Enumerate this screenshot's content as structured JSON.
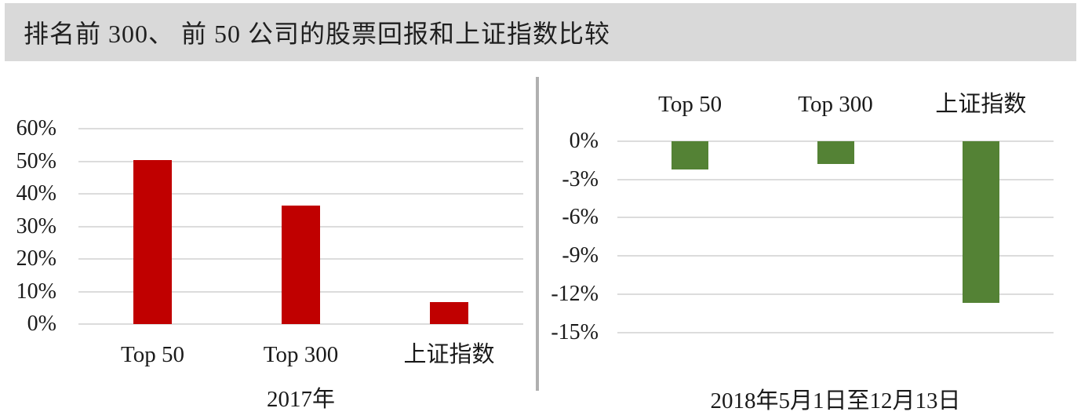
{
  "figure": {
    "title": "排名前 300、 前 50 公司的股票回报和上证指数比较"
  },
  "colors": {
    "title_bar_bg": "#d9d9d9",
    "gridline": "#dcdcdc",
    "divider": "#b0b0b0",
    "text": "#1a1a1a",
    "bar_red": "#c00000",
    "bar_green": "#548235"
  },
  "chart_data": [
    {
      "type": "bar",
      "title": "2017年",
      "categories": [
        "Top 50",
        "Top 300",
        "上证指数"
      ],
      "values": [
        50.4,
        36.5,
        6.7
      ],
      "value_unit": "%",
      "bar_color": "#c00000",
      "ylim": [
        0,
        60
      ],
      "grid": true,
      "category_labels_position": "bottom",
      "yticks": [
        {
          "label": "60%",
          "value": 60
        },
        {
          "label": "50%",
          "value": 50
        },
        {
          "label": "40%",
          "value": 40
        },
        {
          "label": "30%",
          "value": 30
        },
        {
          "label": "20%",
          "value": 20
        },
        {
          "label": "10%",
          "value": 10
        },
        {
          "label": "0%",
          "value": 0
        }
      ]
    },
    {
      "type": "bar",
      "title": "2018年5月1日至12月13日",
      "categories": [
        "Top 50",
        "Top 300",
        "上证指数"
      ],
      "values": [
        -2.2,
        -1.8,
        -12.7
      ],
      "value_unit": "%",
      "bar_color": "#548235",
      "ylim": [
        -15,
        0
      ],
      "grid": true,
      "category_labels_position": "top",
      "yticks": [
        {
          "label": "0%",
          "value": 0
        },
        {
          "label": "-3%",
          "value": -3
        },
        {
          "label": "-6%",
          "value": -6
        },
        {
          "label": "-9%",
          "value": -9
        },
        {
          "label": "-12%",
          "value": -12
        },
        {
          "label": "-15%",
          "value": -15
        }
      ]
    }
  ]
}
